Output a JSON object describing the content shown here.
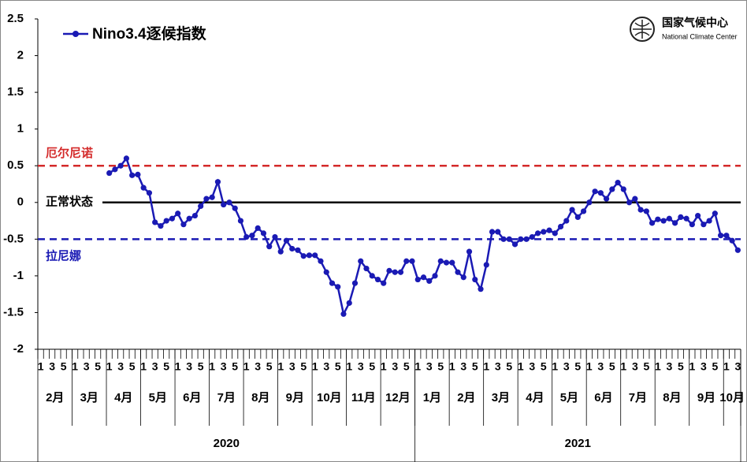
{
  "chart_data": {
    "type": "line",
    "categories": [
      "1",
      null,
      "3",
      null,
      "5",
      null,
      "1",
      null,
      "3",
      null,
      "5",
      null,
      "1",
      null,
      "3",
      null,
      "5",
      null,
      "1",
      null,
      "3",
      null,
      "5",
      null,
      "1",
      null,
      "3",
      null,
      "5",
      null,
      "1",
      null,
      "3",
      null,
      "5",
      null,
      "1",
      null,
      "3",
      null,
      "5",
      null,
      "1",
      null,
      "3",
      null,
      "5",
      null,
      "1",
      null,
      "3",
      null,
      "5",
      null,
      "1",
      null,
      "3",
      null,
      "5",
      null,
      "1",
      null,
      "3",
      null,
      "5",
      null,
      "1",
      null,
      "3",
      null,
      "5",
      null,
      "1",
      null,
      "3",
      null,
      "5",
      null,
      "1",
      null,
      "3",
      null,
      "5",
      null,
      "1",
      null,
      "3",
      null,
      "5",
      null,
      "1",
      null,
      "3",
      null,
      "5",
      null,
      "1",
      null,
      "3",
      null,
      "5",
      null,
      "1",
      null,
      "3",
      null,
      "5",
      null,
      "1",
      null,
      "3",
      null,
      "5",
      null,
      "1",
      null,
      "3",
      null,
      "5",
      null,
      "1",
      null,
      "3"
    ],
    "years": [
      {
        "label": "2020",
        "months": [
          "2月",
          "3月",
          "4月",
          "5月",
          "6月",
          "7月",
          "8月",
          "9月",
          "10月",
          "11月",
          "12月"
        ]
      },
      {
        "label": "2021",
        "months": [
          "1月",
          "2月",
          "3月",
          "4月",
          "5月",
          "6月",
          "7月",
          "8月",
          "9月",
          "10月"
        ]
      }
    ],
    "series": [
      {
        "name": "Nino3.4逐候指数",
        "color": "#1a1ab4",
        "values": [
          null,
          null,
          null,
          null,
          null,
          null,
          null,
          null,
          null,
          null,
          null,
          null,
          0.4,
          0.45,
          0.5,
          0.6,
          0.37,
          0.38,
          0.2,
          0.13,
          -0.27,
          -0.32,
          -0.25,
          -0.22,
          -0.15,
          -0.3,
          -0.22,
          -0.18,
          -0.05,
          0.05,
          0.07,
          0.28,
          -0.03,
          0.0,
          -0.08,
          -0.25,
          -0.47,
          -0.45,
          -0.35,
          -0.42,
          -0.6,
          -0.47,
          -0.67,
          -0.52,
          -0.63,
          -0.65,
          -0.73,
          -0.72,
          -0.72,
          -0.8,
          -0.95,
          -1.1,
          -1.15,
          -1.52,
          -1.37,
          -1.1,
          -0.8,
          -0.9,
          -1.0,
          -1.05,
          -1.1,
          -0.93,
          -0.95,
          -0.95,
          -0.8,
          -0.8,
          -1.05,
          -1.02,
          -1.07,
          -1.0,
          -0.8,
          -0.82,
          -0.82,
          -0.95,
          -1.02,
          -0.67,
          -1.05,
          -1.18,
          -0.85,
          -0.4,
          -0.4,
          -0.5,
          -0.5,
          -0.57,
          -0.5,
          -0.5,
          -0.47,
          -0.42,
          -0.4,
          -0.38,
          -0.42,
          -0.33,
          -0.25,
          -0.1,
          -0.2,
          -0.12,
          0.0,
          0.15,
          0.13,
          0.05,
          0.18,
          0.27,
          0.18,
          0.0,
          0.05,
          -0.1,
          -0.12,
          -0.28,
          -0.23,
          -0.25,
          -0.22,
          -0.28,
          -0.2,
          -0.22,
          -0.3,
          -0.18,
          -0.3,
          -0.25,
          -0.15,
          -0.45,
          -0.45,
          -0.52,
          -0.65
        ]
      }
    ],
    "reference_lines": [
      {
        "value": 0.5,
        "label": "厄尔尼诺",
        "color": "#d42a2a",
        "dashed": true
      },
      {
        "value": 0,
        "label": "正常状态",
        "color": "#000000",
        "dashed": false
      },
      {
        "value": -0.5,
        "label": "拉尼娜",
        "color": "#1a1ab4",
        "dashed": true
      }
    ],
    "ylim": [
      -2,
      2.5
    ],
    "yticks": [
      -2,
      -1.5,
      -1,
      -0.5,
      0,
      0.5,
      1,
      1.5,
      2,
      2.5
    ],
    "grid": false
  },
  "logo": {
    "name": "国家气候中心",
    "english": "National Climate Center"
  }
}
